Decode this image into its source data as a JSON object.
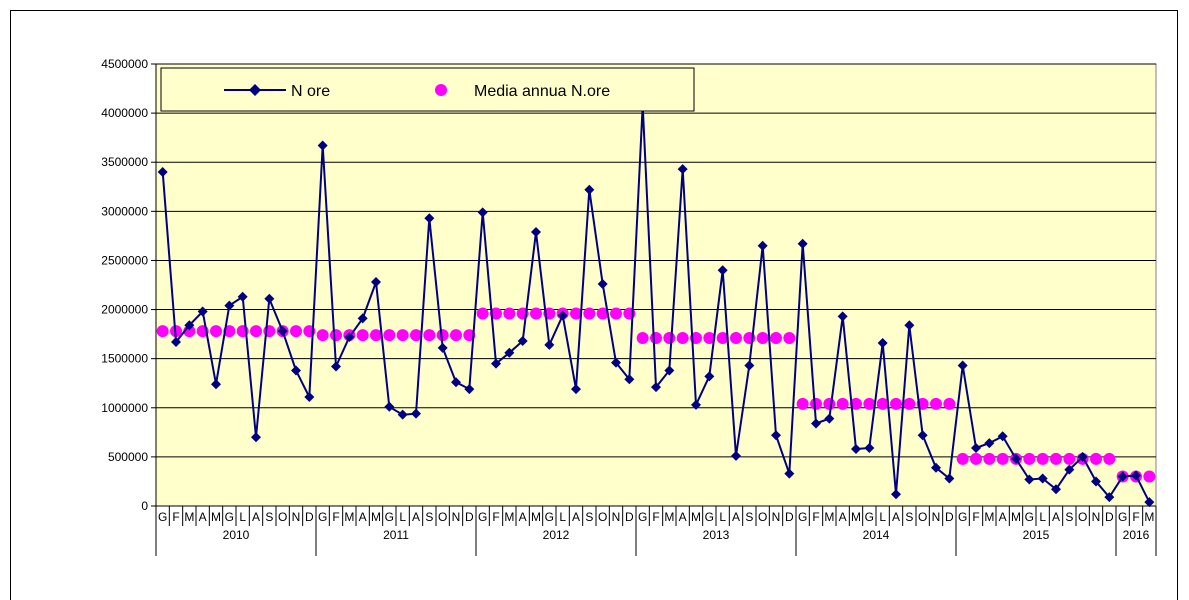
{
  "chart_data": {
    "type": "line",
    "title": "",
    "xlabel": "",
    "ylabel": "",
    "ylim": [
      0,
      4500000
    ],
    "yticks": [
      "0",
      "500000",
      "1000000",
      "1500000",
      "2000000",
      "2500000",
      "3000000",
      "3500000",
      "4000000",
      "4500000"
    ],
    "grid": "horizontal",
    "legend_position": "top-left",
    "colors": {
      "plot_bg": "#ffffcc",
      "series": "#000080",
      "media": "#ff00ff",
      "grid": "#000000"
    },
    "years": [
      {
        "label": "2010",
        "months": 12
      },
      {
        "label": "2011",
        "months": 12
      },
      {
        "label": "2012",
        "months": 12
      },
      {
        "label": "2013",
        "months": 12
      },
      {
        "label": "2014",
        "months": 12
      },
      {
        "label": "2015",
        "months": 12
      },
      {
        "label": "2016",
        "months": 3
      }
    ],
    "month_letters": [
      "G",
      "F",
      "M",
      "A",
      "M",
      "G",
      "L",
      "A",
      "S",
      "O",
      "N",
      "D"
    ],
    "series": [
      {
        "name": "N ore",
        "values": [
          3400000,
          1670000,
          1840000,
          1980000,
          1240000,
          2040000,
          2130000,
          700000,
          2110000,
          1780000,
          1380000,
          1110000,
          3670000,
          1420000,
          1720000,
          1910000,
          2280000,
          1010000,
          930000,
          940000,
          2930000,
          1610000,
          1260000,
          1190000,
          2990000,
          1450000,
          1560000,
          1680000,
          2790000,
          1640000,
          1940000,
          1190000,
          3220000,
          2260000,
          1460000,
          1290000,
          4080000,
          1210000,
          1380000,
          3430000,
          1030000,
          1320000,
          2400000,
          510000,
          1430000,
          2650000,
          720000,
          330000,
          2670000,
          840000,
          890000,
          1930000,
          580000,
          590000,
          1660000,
          120000,
          1840000,
          720000,
          390000,
          280000,
          1430000,
          590000,
          640000,
          710000,
          480000,
          270000,
          280000,
          170000,
          370000,
          500000,
          250000,
          90000,
          300000,
          310000,
          40000
        ]
      },
      {
        "name": "Media annua N.ore",
        "values": [
          1780000,
          1780000,
          1780000,
          1780000,
          1780000,
          1780000,
          1780000,
          1780000,
          1780000,
          1780000,
          1780000,
          1780000,
          1740000,
          1740000,
          1740000,
          1740000,
          1740000,
          1740000,
          1740000,
          1740000,
          1740000,
          1740000,
          1740000,
          1740000,
          1960000,
          1960000,
          1960000,
          1960000,
          1960000,
          1960000,
          1960000,
          1960000,
          1960000,
          1960000,
          1960000,
          1960000,
          1710000,
          1710000,
          1710000,
          1710000,
          1710000,
          1710000,
          1710000,
          1710000,
          1710000,
          1710000,
          1710000,
          1710000,
          1040000,
          1040000,
          1040000,
          1040000,
          1040000,
          1040000,
          1040000,
          1040000,
          1040000,
          1040000,
          1040000,
          1040000,
          480000,
          480000,
          480000,
          480000,
          480000,
          480000,
          480000,
          480000,
          480000,
          480000,
          480000,
          480000,
          300000,
          300000,
          300000
        ]
      }
    ]
  }
}
